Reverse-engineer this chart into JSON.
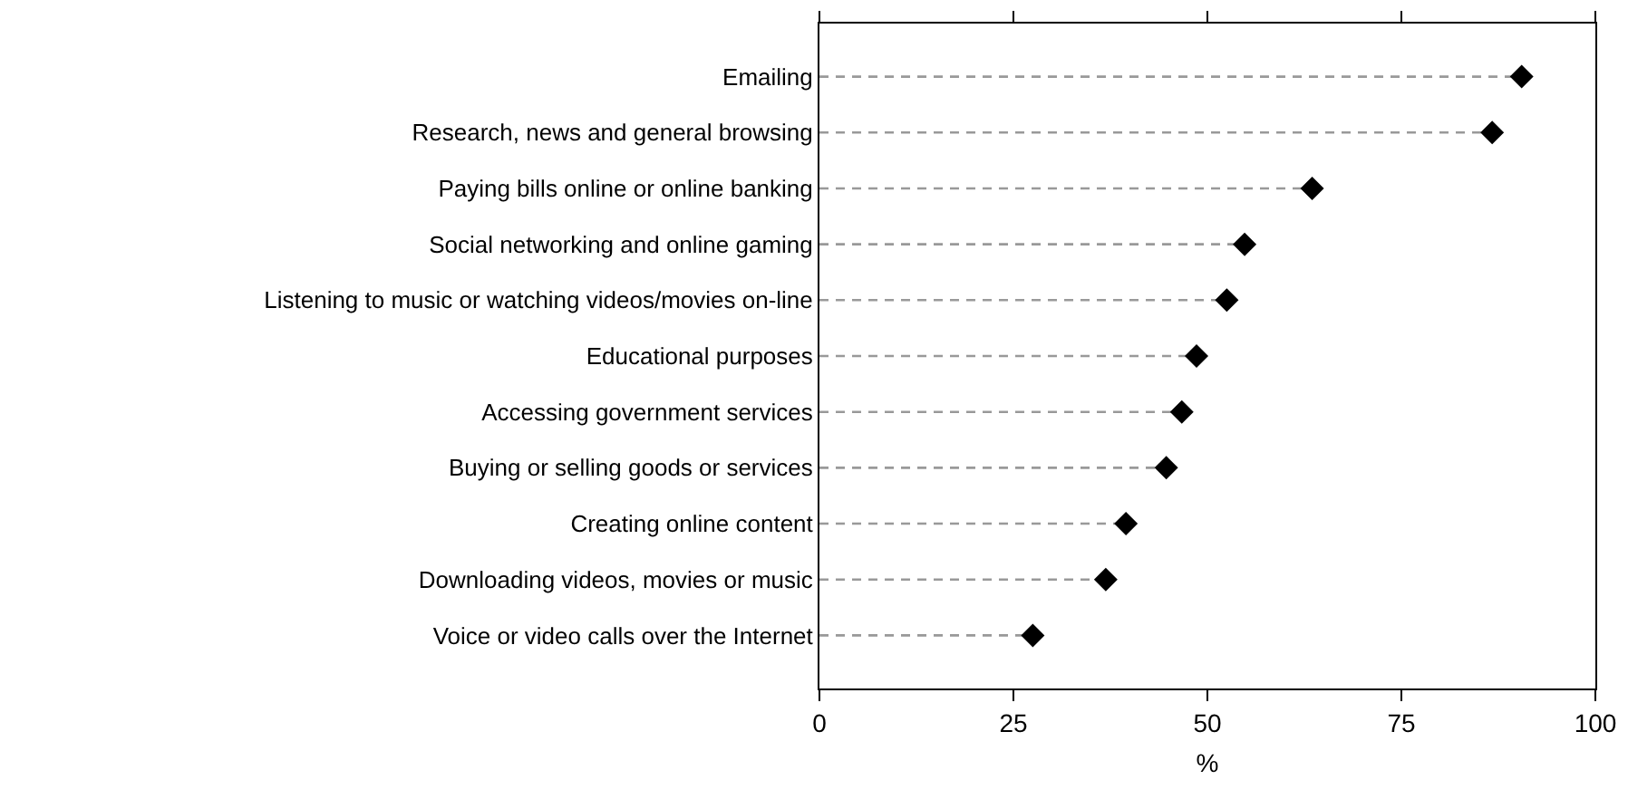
{
  "chart_data": {
    "type": "lollipop",
    "orientation": "horizontal",
    "xlabel": "%",
    "categories": [
      "Emailing",
      "Research, news and general browsing",
      "Paying bills online or online banking",
      "Social networking and online gaming",
      "Listening to music or watching videos/movies on-line",
      "Educational purposes",
      "Accessing government services",
      "Buying or selling goods or services",
      "Creating online content",
      "Downloading videos, movies or music",
      "Voice or video calls over the Internet"
    ],
    "values": [
      90.5,
      86.7,
      63.5,
      54.8,
      52.5,
      48.6,
      46.7,
      44.7,
      39.5,
      36.9,
      27.5
    ],
    "color": "#000000",
    "marker": "diamond",
    "line_style": "dashed",
    "xlim": [
      0,
      100
    ],
    "xticks": [
      0,
      25,
      50,
      75,
      100
    ],
    "grid": false
  }
}
